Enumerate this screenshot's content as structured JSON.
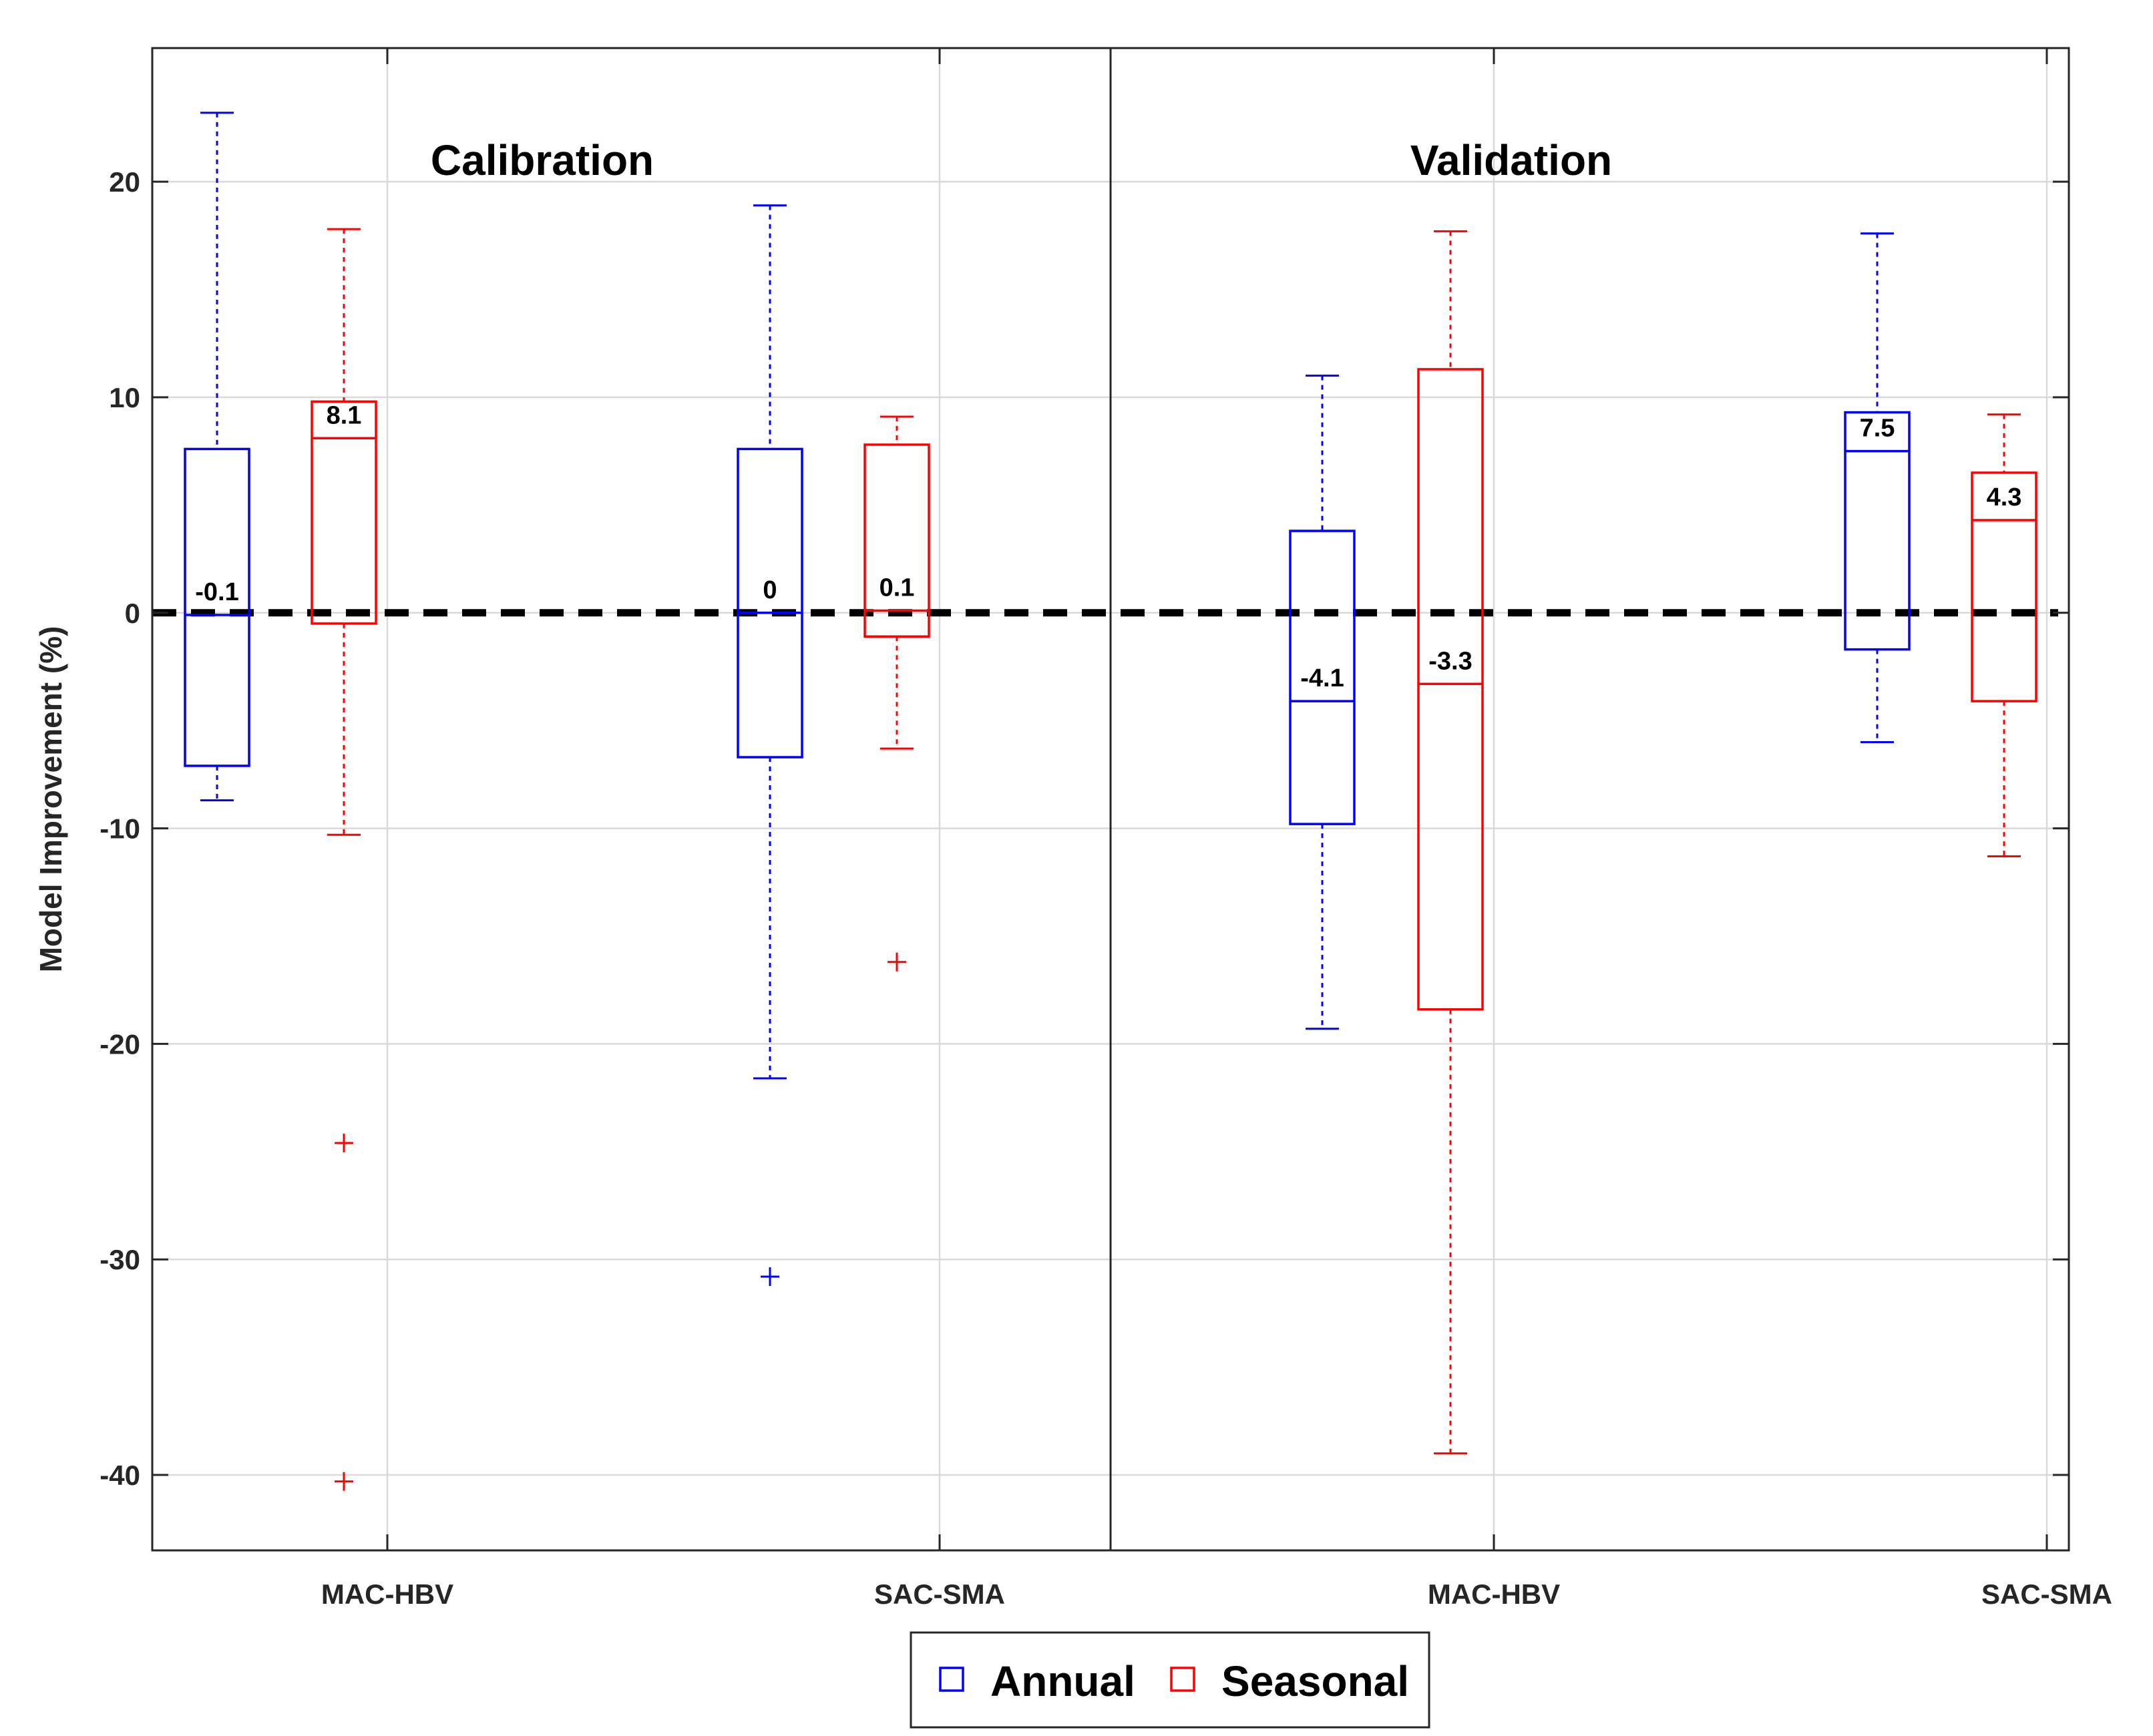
{
  "chart_data": {
    "type": "box",
    "ylabel": "Model Improvement (%)",
    "xlabel": "",
    "ylim": [
      -43.5,
      26.2
    ],
    "yticks": [
      20,
      10,
      0,
      -10,
      -20,
      -30,
      -40
    ],
    "ytick_labels": [
      "20",
      "10",
      "0",
      "-10",
      "-20",
      "-30",
      "-40"
    ],
    "grid": true,
    "reference_line": {
      "y": 0,
      "style": "dashed",
      "color": "#000000"
    },
    "panels": [
      {
        "title": "Calibration",
        "categories": [
          "MAC-HBV",
          "SAC-SMA"
        ]
      },
      {
        "title": "Validation",
        "categories": [
          "MAC-HBV",
          "SAC-SMA"
        ]
      }
    ],
    "series_colors": {
      "Annual": "#0000ff",
      "Seasonal": "#ff0000"
    },
    "boxes": [
      {
        "panel": "Calibration",
        "model": "MAC-HBV",
        "series": "Annual",
        "whisker_low": -8.7,
        "q1": -7.1,
        "median": -0.1,
        "q3": 7.6,
        "whisker_high": 23.2,
        "outliers": [],
        "label": "-0.1"
      },
      {
        "panel": "Calibration",
        "model": "MAC-HBV",
        "series": "Seasonal",
        "whisker_low": -10.3,
        "q1": -0.5,
        "median": 8.1,
        "q3": 9.8,
        "whisker_high": 17.8,
        "outliers": [
          -24.6,
          -40.3
        ],
        "label": "8.1"
      },
      {
        "panel": "Calibration",
        "model": "SAC-SMA",
        "series": "Annual",
        "whisker_low": -21.6,
        "q1": -6.7,
        "median": 0,
        "q3": 7.6,
        "whisker_high": 18.9,
        "outliers": [
          -30.8
        ],
        "label": "0"
      },
      {
        "panel": "Calibration",
        "model": "SAC-SMA",
        "series": "Seasonal",
        "whisker_low": -6.3,
        "q1": -1.1,
        "median": 0.1,
        "q3": 7.8,
        "whisker_high": 9.1,
        "outliers": [
          -16.2
        ],
        "label": "0.1"
      },
      {
        "panel": "Validation",
        "model": "MAC-HBV",
        "series": "Annual",
        "whisker_low": -19.3,
        "q1": -9.8,
        "median": -4.1,
        "q3": 3.8,
        "whisker_high": 11.0,
        "outliers": [],
        "label": "-4.1"
      },
      {
        "panel": "Validation",
        "model": "MAC-HBV",
        "series": "Seasonal",
        "whisker_low": -39.0,
        "q1": -18.4,
        "median": -3.3,
        "q3": 11.3,
        "whisker_high": 17.7,
        "outliers": [],
        "label": "-3.3"
      },
      {
        "panel": "Validation",
        "model": "SAC-SMA",
        "series": "Annual",
        "whisker_low": -6.0,
        "q1": -1.7,
        "median": 7.5,
        "q3": 9.3,
        "whisker_high": 17.6,
        "outliers": [],
        "label": "7.5"
      },
      {
        "panel": "Validation",
        "model": "SAC-SMA",
        "series": "Seasonal",
        "whisker_low": -11.3,
        "q1": -4.1,
        "median": 4.3,
        "q3": 6.5,
        "whisker_high": 9.2,
        "outliers": [],
        "label": "4.3"
      }
    ],
    "legend": {
      "entries": [
        "Annual",
        "Seasonal"
      ],
      "placement": "bottom-center"
    }
  }
}
